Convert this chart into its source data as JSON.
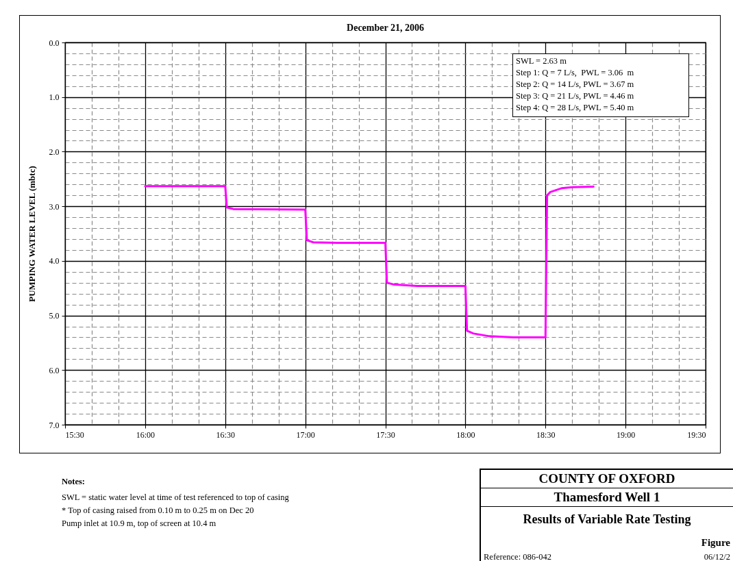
{
  "chart_data": {
    "type": "line",
    "title": "December 21, 2006",
    "ylabel": "PUMPING WATER LEVEL (mbtc)",
    "x": [
      16.0,
      16.5,
      16.51,
      16.55,
      17.0,
      17.01,
      17.05,
      17.2,
      17.5,
      17.51,
      17.55,
      17.7,
      18.0,
      18.01,
      18.05,
      18.15,
      18.3,
      18.5,
      18.51,
      18.53,
      18.6,
      18.67,
      18.8
    ],
    "series": [
      {
        "color": "#ff00ff",
        "values": [
          2.63,
          2.63,
          3.02,
          3.05,
          3.06,
          3.62,
          3.66,
          3.67,
          3.67,
          4.4,
          4.43,
          4.46,
          4.46,
          5.28,
          5.33,
          5.38,
          5.4,
          5.4,
          2.8,
          2.74,
          2.67,
          2.65,
          2.64
        ]
      }
    ],
    "xlim": [
      15.5,
      19.5
    ],
    "xticks": [
      {
        "value": 15.5,
        "label": "15:30"
      },
      {
        "value": 15.6667,
        "label": null
      },
      {
        "value": 15.8333,
        "label": null
      },
      {
        "value": 16,
        "label": "16:00"
      },
      {
        "value": 16.1667,
        "label": null
      },
      {
        "value": 16.3333,
        "label": null
      },
      {
        "value": 16.5,
        "label": "16:30"
      },
      {
        "value": 16.6667,
        "label": null
      },
      {
        "value": 16.8333,
        "label": null
      },
      {
        "value": 17,
        "label": "17:00"
      },
      {
        "value": 17.1667,
        "label": null
      },
      {
        "value": 17.3333,
        "label": null
      },
      {
        "value": 17.5,
        "label": "17:30"
      },
      {
        "value": 17.6667,
        "label": null
      },
      {
        "value": 17.8333,
        "label": null
      },
      {
        "value": 18,
        "label": "18:00"
      },
      {
        "value": 18.1667,
        "label": null
      },
      {
        "value": 18.3333,
        "label": null
      },
      {
        "value": 18.5,
        "label": "18:30"
      },
      {
        "value": 18.6667,
        "label": null
      },
      {
        "value": 18.8333,
        "label": null
      },
      {
        "value": 19,
        "label": "19:00"
      },
      {
        "value": 19.1667,
        "label": null
      },
      {
        "value": 19.3333,
        "label": null
      },
      {
        "value": 19.5,
        "label": "19:30"
      }
    ],
    "ylim": [
      7,
      0
    ],
    "yticks": [
      {
        "value": 0,
        "label": "0.0"
      },
      {
        "value": 0.2,
        "label": null
      },
      {
        "value": 0.4,
        "label": null
      },
      {
        "value": 0.6,
        "label": null
      },
      {
        "value": 0.8,
        "label": null
      },
      {
        "value": 1,
        "label": "1.0"
      },
      {
        "value": 1.2,
        "label": null
      },
      {
        "value": 1.4,
        "label": null
      },
      {
        "value": 1.6,
        "label": null
      },
      {
        "value": 1.8,
        "label": null
      },
      {
        "value": 2,
        "label": "2.0"
      },
      {
        "value": 2.2,
        "label": null
      },
      {
        "value": 2.4,
        "label": null
      },
      {
        "value": 2.6,
        "label": null
      },
      {
        "value": 2.8,
        "label": null
      },
      {
        "value": 3,
        "label": "3.0"
      },
      {
        "value": 3.2,
        "label": null
      },
      {
        "value": 3.4,
        "label": null
      },
      {
        "value": 3.6,
        "label": null
      },
      {
        "value": 3.8,
        "label": null
      },
      {
        "value": 4,
        "label": "4.0"
      },
      {
        "value": 4.2,
        "label": null
      },
      {
        "value": 4.4,
        "label": null
      },
      {
        "value": 4.6,
        "label": null
      },
      {
        "value": 4.8,
        "label": null
      },
      {
        "value": 5,
        "label": "5.0"
      },
      {
        "value": 5.2,
        "label": null
      },
      {
        "value": 5.4,
        "label": null
      },
      {
        "value": 5.6,
        "label": null
      },
      {
        "value": 5.8,
        "label": null
      },
      {
        "value": 6,
        "label": "6.0"
      },
      {
        "value": 6.2,
        "label": null
      },
      {
        "value": 6.4,
        "label": null
      },
      {
        "value": 6.6,
        "label": null
      },
      {
        "value": 6.8,
        "label": null
      },
      {
        "value": 7,
        "label": "7.0"
      }
    ],
    "grid": true,
    "marker": "none",
    "line_style": "solid",
    "annotations": [
      "SWL = 2.63 m",
      "Step 1: Q = 7 L/s,  PWL = 3.06  m",
      "Step 2: Q = 14 L/s, PWL = 3.67 m",
      "Step 3: Q = 21 L/s, PWL = 4.46 m",
      "Step 4: Q = 28 L/s, PWL = 5.40 m",
      "Notes:",
      "SWL = static water level at time of test referenced to top of casing",
      "* Top of casing raised from 0.10 m to 0.25 m on Dec 20",
      "Pump inlet at 10.9 m, top of screen at 10.4 m",
      "COUNTY OF OXFORD",
      "Thamesford Well 1",
      "Results of Variable Rate Testing",
      "Figure",
      "Reference: 086-042",
      "06/12/2"
    ]
  }
}
